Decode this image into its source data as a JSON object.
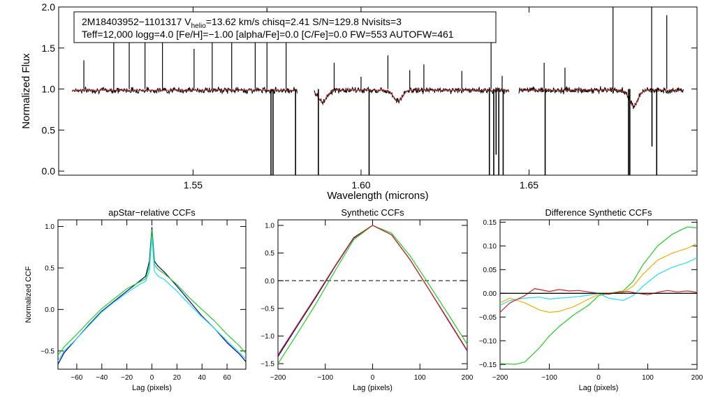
{
  "chart_data": [
    {
      "type": "line",
      "id": "spectrum",
      "xlabel": "Wavelength (microns)",
      "ylabel": "Normalized Flux",
      "xlim": [
        1.51,
        1.7
      ],
      "ylim": [
        -0.05,
        2.0
      ],
      "xticks": [
        1.55,
        1.6,
        1.65
      ],
      "xtick_labels": [
        "1.55",
        "1.60",
        "1.65"
      ],
      "yticks": [
        0.0,
        0.5,
        1.0,
        1.5,
        2.0
      ],
      "ytick_labels": [
        "0.0",
        "0.5",
        "1.0",
        "1.5",
        "2.0"
      ],
      "info_box": {
        "star_id": "2M18403952−1101317",
        "v_prefix": "V",
        "v_sub": "helio",
        "v_value": "=13.62 km/s",
        "stats": "chisq=2.41  S/N=129.8  Nvisits=3",
        "line2": "Teff=12,000 logg=4.0 [Fe/H]=−1.00 [alpha/Fe]=0.0 [C/Fe]=0.0 FW=553 AUTOFW=461"
      },
      "chip_ranges": [
        [
          1.514,
          1.581
        ],
        [
          1.586,
          1.644
        ],
        [
          1.647,
          1.696
        ]
      ],
      "absorption_lines": [
        {
          "x": 1.5885,
          "depth": 0.14
        },
        {
          "x": 1.611,
          "depth": 0.13
        },
        {
          "x": 1.6811,
          "depth": 0.19
        }
      ],
      "emission_spikes": [
        {
          "x": 1.5175,
          "peak": 1.35
        },
        {
          "x": 1.5264,
          "peak": 1.6
        },
        {
          "x": 1.531,
          "peak": 1.75
        },
        {
          "x": 1.5357,
          "peak": 1.58
        },
        {
          "x": 1.5409,
          "peak": 1.69
        },
        {
          "x": 1.5503,
          "peak": 1.49
        },
        {
          "x": 1.5557,
          "peak": 1.8
        },
        {
          "x": 1.5615,
          "peak": 1.72
        },
        {
          "x": 1.5685,
          "peak": 1.82
        },
        {
          "x": 1.572,
          "peak": 1.99
        },
        {
          "x": 1.5777,
          "peak": 1.76
        },
        {
          "x": 1.592,
          "peak": 1.32
        },
        {
          "x": 1.6,
          "peak": 1.15
        },
        {
          "x": 1.608,
          "peak": 1.41
        },
        {
          "x": 1.6145,
          "peak": 1.23
        },
        {
          "x": 1.6187,
          "peak": 1.3
        },
        {
          "x": 1.63,
          "peak": 1.22
        },
        {
          "x": 1.6387,
          "peak": 1.66
        },
        {
          "x": 1.642,
          "peak": 1.16
        },
        {
          "x": 1.6545,
          "peak": 1.32
        },
        {
          "x": 1.6607,
          "peak": 1.26
        },
        {
          "x": 1.675,
          "peak": 2.0
        },
        {
          "x": 1.6865,
          "peak": 2.0
        },
        {
          "x": 1.691,
          "peak": 1.9
        }
      ],
      "absorption_spikes": [
        {
          "x": 1.5732,
          "min": -0.05
        },
        {
          "x": 1.5738,
          "min": -0.05
        },
        {
          "x": 1.5805,
          "min": -0.05
        },
        {
          "x": 1.5873,
          "min": -0.05
        },
        {
          "x": 1.6024,
          "min": -0.05
        },
        {
          "x": 1.6382,
          "min": -0.05
        },
        {
          "x": 1.6395,
          "min": -0.05
        },
        {
          "x": 1.6402,
          "min": 0.2
        },
        {
          "x": 1.641,
          "min": -0.05
        },
        {
          "x": 1.6423,
          "min": -0.05
        },
        {
          "x": 1.6548,
          "min": -0.05
        },
        {
          "x": 1.6796,
          "min": -0.05
        },
        {
          "x": 1.68,
          "min": -0.05
        },
        {
          "x": 1.6866,
          "min": 0.3
        },
        {
          "x": 1.688,
          "min": -0.05
        }
      ],
      "series": [
        {
          "name": "observed spectrum",
          "color": "#000000"
        },
        {
          "name": "best-fit model",
          "color": "#d42020"
        }
      ]
    },
    {
      "type": "line",
      "id": "apstar_ccf",
      "title": "apStar−relative CCFs",
      "xlabel": "Lag (pixels)",
      "ylabel": "Normalized CCF",
      "xlim": [
        -75,
        75
      ],
      "ylim": [
        -0.72,
        1.08
      ],
      "xticks": [
        -60,
        -40,
        -20,
        0,
        20,
        40,
        60
      ],
      "xtick_labels": [
        "−60",
        "−40",
        "−20",
        "0",
        "20",
        "40",
        "60"
      ],
      "yticks": [
        -0.5,
        0.0,
        0.5,
        1.0
      ],
      "ytick_labels": [
        "−0.5",
        "0.0",
        "0.5",
        "1.0"
      ],
      "series": [
        {
          "name": "combined",
          "color": "#000080",
          "x": [
            -75,
            -70,
            -60,
            -50,
            -40,
            -30,
            -20,
            -10,
            -5,
            -2,
            0,
            2,
            5,
            10,
            20,
            30,
            40,
            50,
            60,
            70,
            75
          ],
          "y": [
            -0.66,
            -0.52,
            -0.35,
            -0.18,
            -0.02,
            0.1,
            0.22,
            0.34,
            0.4,
            0.58,
            0.99,
            0.58,
            0.52,
            0.45,
            0.28,
            0.1,
            -0.08,
            -0.23,
            -0.4,
            -0.54,
            -0.63
          ]
        },
        {
          "name": "visit 1",
          "color": "#20d020",
          "x": [
            -75,
            -70,
            -60,
            -50,
            -40,
            -30,
            -20,
            -10,
            -5,
            -2,
            0,
            2,
            5,
            10,
            20,
            30,
            40,
            50,
            60,
            70,
            75
          ],
          "y": [
            -0.55,
            -0.45,
            -0.3,
            -0.14,
            0.01,
            0.13,
            0.25,
            0.33,
            0.37,
            0.52,
            0.96,
            0.54,
            0.48,
            0.43,
            0.3,
            0.14,
            0.0,
            -0.14,
            -0.3,
            -0.44,
            -0.53
          ]
        },
        {
          "name": "visit 2",
          "color": "#20e0f0",
          "x": [
            -75,
            -70,
            -60,
            -50,
            -40,
            -30,
            -20,
            -10,
            -5,
            -2,
            0,
            2,
            5,
            10,
            20,
            30,
            40,
            50,
            60,
            70,
            75
          ],
          "y": [
            -0.62,
            -0.5,
            -0.35,
            -0.19,
            -0.03,
            0.09,
            0.2,
            0.3,
            0.34,
            0.46,
            0.88,
            0.46,
            0.4,
            0.36,
            0.22,
            0.06,
            -0.09,
            -0.23,
            -0.38,
            -0.52,
            -0.6
          ]
        }
      ]
    },
    {
      "type": "line",
      "id": "synthetic_ccf",
      "title": "Synthetic CCFs",
      "xlabel": "Lag (pixels)",
      "ylabel": "",
      "xlim": [
        -200,
        200
      ],
      "ylim": [
        -1.6,
        1.1
      ],
      "xticks": [
        -200,
        -100,
        0,
        100,
        200
      ],
      "xtick_labels": [
        "−200",
        "−100",
        "0",
        "100",
        "200"
      ],
      "yticks": [
        -1.5,
        -1.0,
        -0.5,
        0.0,
        0.5,
        1.0
      ],
      "ytick_labels": [
        "−1.5",
        "−1.0",
        "−0.5",
        "0.0",
        "0.5",
        "1.0"
      ],
      "zero_line": {
        "y": 0.0,
        "style": "dashed"
      },
      "series": [
        {
          "name": "synthetic 1",
          "color": "#000080",
          "x": [
            -200,
            -160,
            -120,
            -80,
            -40,
            0,
            40,
            80,
            120,
            160,
            200
          ],
          "y": [
            -1.37,
            -0.83,
            -0.3,
            0.25,
            0.77,
            1.0,
            0.83,
            0.37,
            -0.17,
            -0.72,
            -1.27
          ]
        },
        {
          "name": "synthetic 2",
          "color": "#20d020",
          "x": [
            -200,
            -160,
            -120,
            -80,
            -40,
            0,
            40,
            80,
            120,
            160,
            200
          ],
          "y": [
            -1.5,
            -0.97,
            -0.42,
            0.17,
            0.74,
            1.0,
            0.86,
            0.44,
            -0.08,
            -0.61,
            -1.15
          ]
        },
        {
          "name": "synthetic 3",
          "color": "#d42020",
          "x": [
            -200,
            -160,
            -120,
            -80,
            -40,
            0,
            40,
            80,
            120,
            160,
            200
          ],
          "y": [
            -1.34,
            -0.81,
            -0.28,
            0.26,
            0.78,
            1.0,
            0.83,
            0.37,
            -0.17,
            -0.71,
            -1.26
          ]
        }
      ]
    },
    {
      "type": "line",
      "id": "difference_ccf",
      "title": "Difference Synthetic CCFs",
      "xlabel": "Lag (pixels)",
      "ylabel": "",
      "xlim": [
        -200,
        200
      ],
      "ylim": [
        -0.16,
        0.155
      ],
      "xticks": [
        -200,
        -100,
        0,
        100,
        200
      ],
      "xtick_labels": [
        "−200",
        "−100",
        "0",
        "100",
        "200"
      ],
      "yticks": [
        -0.15,
        -0.1,
        -0.05,
        0.0,
        0.05,
        0.1,
        0.15
      ],
      "ytick_labels": [
        "−0.15",
        "−0.10",
        "−0.05",
        "0.00",
        "0.05",
        "0.10",
        "0.15"
      ],
      "zero_line": {
        "y": 0.0,
        "style": "solid"
      },
      "series": [
        {
          "name": "green",
          "color": "#20d020",
          "x": [
            -200,
            -170,
            -150,
            -120,
            -100,
            -80,
            -50,
            -20,
            0,
            20,
            50,
            70,
            90,
            120,
            150,
            180,
            200
          ],
          "y": [
            -0.148,
            -0.15,
            -0.145,
            -0.115,
            -0.09,
            -0.07,
            -0.045,
            -0.025,
            -0.005,
            0.0,
            0.005,
            0.025,
            0.06,
            0.1,
            0.125,
            0.14,
            0.138
          ]
        },
        {
          "name": "orange",
          "color": "#f0b000",
          "x": [
            -200,
            -180,
            -150,
            -120,
            -100,
            -80,
            -50,
            -20,
            0,
            20,
            50,
            70,
            90,
            120,
            150,
            180,
            200
          ],
          "y": [
            -0.02,
            -0.01,
            -0.02,
            -0.035,
            -0.04,
            -0.038,
            -0.028,
            -0.012,
            -0.002,
            0.0,
            0.002,
            0.015,
            0.04,
            0.07,
            0.085,
            0.095,
            0.105
          ]
        },
        {
          "name": "cyan",
          "color": "#20e0f0",
          "x": [
            -200,
            -180,
            -150,
            -120,
            -100,
            -80,
            -50,
            -20,
            0,
            20,
            50,
            70,
            90,
            120,
            150,
            180,
            200
          ],
          "y": [
            -0.025,
            -0.015,
            -0.01,
            -0.008,
            -0.012,
            -0.01,
            -0.008,
            -0.004,
            0.0,
            -0.01,
            -0.015,
            -0.005,
            0.015,
            0.04,
            0.055,
            0.065,
            0.075
          ]
        },
        {
          "name": "red",
          "color": "#d42020",
          "x": [
            -200,
            -180,
            -150,
            -130,
            -120,
            -100,
            -80,
            -60,
            -40,
            -20,
            0,
            20,
            40,
            60,
            80,
            100,
            120,
            140,
            160,
            180,
            200
          ],
          "y": [
            -0.04,
            -0.02,
            -0.005,
            0.01,
            0.008,
            0.004,
            0.008,
            0.005,
            0.006,
            0.003,
            0.0,
            -0.002,
            0.002,
            0.004,
            0.0,
            -0.003,
            0.002,
            0.006,
            0.003,
            0.005,
            0.002
          ]
        },
        {
          "name": "black",
          "color": "#000000",
          "x": [
            -200,
            200
          ],
          "y": [
            0.0,
            0.0
          ]
        }
      ]
    }
  ]
}
